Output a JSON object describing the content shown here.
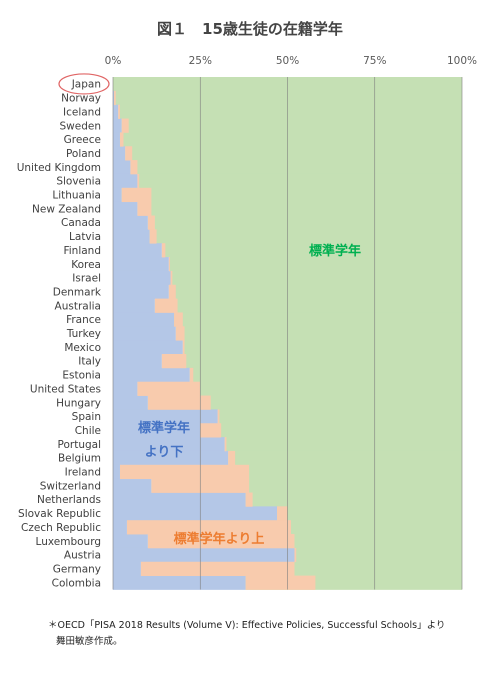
{
  "figure": {
    "title": "図１　15歳生徒の在籍学年",
    "note_line1": "＊OECD「PISA 2018 Results (Volume V): Effective Policies, Successful Schools」より",
    "note_line2": "舞田敏彦作成。"
  },
  "chart_data": {
    "type": "bar",
    "stacked": true,
    "orientation": "horizontal",
    "x_ticks": [
      "0%",
      "25%",
      "50%",
      "75%",
      "100%"
    ],
    "xlim": [
      0,
      100
    ],
    "grid": true,
    "highlight_category": "Japan",
    "annotations": {
      "below": "標準学年\nより下",
      "standard": "標準学年",
      "above": "標準学年より上"
    },
    "colors": {
      "below": "#b4c7e7",
      "above": "#f8cbad",
      "standard": "#c5e0b4",
      "below_text": "#4472c4",
      "above_text": "#ed7d31",
      "standard_text": "#00b050",
      "highlight_ring": "#e06666"
    },
    "categories": [
      "Japan",
      "Norway",
      "Iceland",
      "Sweden",
      "Greece",
      "Poland",
      "United Kingdom",
      "Slovenia",
      "Lithuania",
      "New Zealand",
      "Canada",
      "Latvia",
      "Finland",
      "Korea",
      "Israel",
      "Denmark",
      "Australia",
      "France",
      "Turkey",
      "Mexico",
      "Italy",
      "Estonia",
      "United States",
      "Hungary",
      "Spain",
      "Chile",
      "Portugal",
      "Belgium",
      "Ireland",
      "Switzerland",
      "Netherlands",
      "Slovak Republic",
      "Czech Republic",
      "Luxembourg",
      "Austria",
      "Germany",
      "Colombia"
    ],
    "series": [
      {
        "key": "below",
        "values": [
          0,
          0.3,
          1.5,
          2.5,
          2,
          3.5,
          5,
          7,
          2.5,
          7,
          10,
          10.5,
          14,
          16,
          16.5,
          16,
          12,
          17.5,
          18,
          20,
          14,
          22,
          7,
          10,
          30,
          25,
          32,
          33,
          2,
          11,
          38,
          47,
          4,
          10,
          52,
          8,
          38
        ]
      },
      {
        "key": "above",
        "values": [
          0,
          0.5,
          0.5,
          2,
          1,
          2,
          2,
          0.5,
          8.5,
          4,
          2,
          2,
          1,
          0.3,
          0.5,
          2,
          6.5,
          2.5,
          2.5,
          0.5,
          7,
          1,
          18,
          18,
          0.5,
          6,
          0.5,
          2,
          37,
          28,
          2,
          3,
          47,
          42,
          0.5,
          44,
          20
        ]
      }
    ]
  }
}
